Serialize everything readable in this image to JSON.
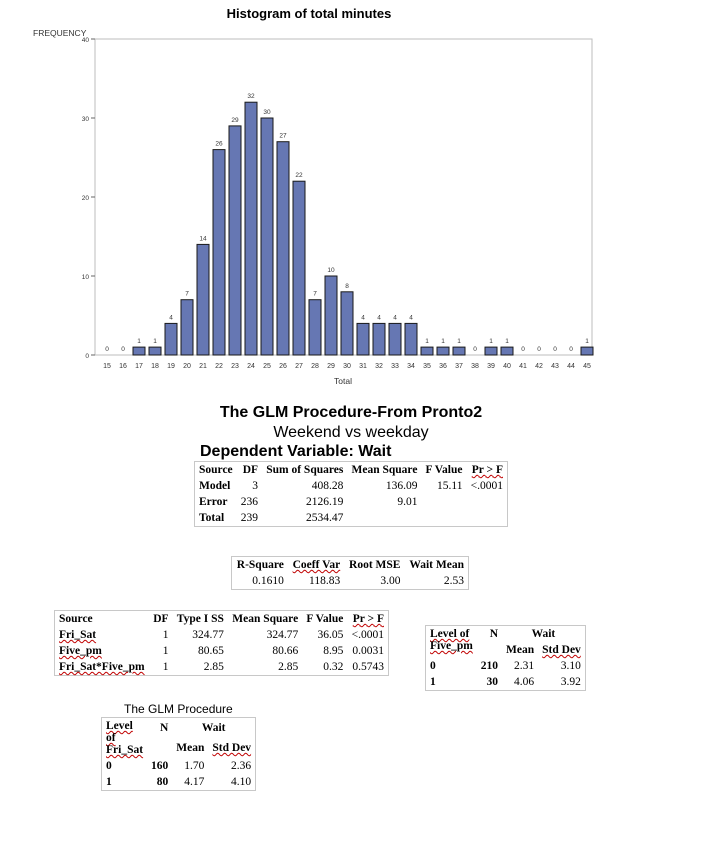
{
  "chart_data": {
    "type": "bar",
    "title": "Histogram of total minutes",
    "ylabel": "FREQUENCY",
    "xlabel": "Total",
    "ylim": [
      0,
      40
    ],
    "yticks": [
      0,
      10,
      20,
      30,
      40
    ],
    "categories": [
      "15",
      "16",
      "17",
      "18",
      "19",
      "20",
      "21",
      "22",
      "23",
      "24",
      "25",
      "26",
      "27",
      "28",
      "29",
      "30",
      "31",
      "32",
      "33",
      "34",
      "35",
      "36",
      "37",
      "38",
      "39",
      "40",
      "41",
      "42",
      "43",
      "44",
      "45"
    ],
    "values": [
      0,
      0,
      1,
      1,
      4,
      7,
      14,
      26,
      29,
      32,
      30,
      27,
      22,
      7,
      10,
      8,
      4,
      4,
      4,
      4,
      1,
      1,
      1,
      0,
      1,
      1,
      0,
      0,
      0,
      0,
      1
    ],
    "bar_color": "#6677b3",
    "bar_edge": "#1a1a1a"
  },
  "glm1": {
    "title": "The GLM Procedure-From Pronto2",
    "subtitle": "Weekend vs weekday",
    "dependent": "Dependent Variable: Wait",
    "anova": {
      "headers": [
        "Source",
        "DF",
        "Sum of Squares",
        "Mean Square",
        "F Value",
        "Pr > F"
      ],
      "rows": [
        [
          "Model",
          "3",
          "408.28",
          "136.09",
          "15.11",
          "<.0001"
        ],
        [
          "Error",
          "236",
          "2126.19",
          "9.01",
          "",
          ""
        ],
        [
          "Total",
          "239",
          "2534.47",
          "",
          "",
          ""
        ]
      ]
    },
    "fit": {
      "headers": [
        "R-Square",
        "Coeff Var",
        "Root MSE",
        "Wait Mean"
      ],
      "values": [
        "0.1610",
        "118.83",
        "3.00",
        "2.53"
      ]
    },
    "type1": {
      "headers": [
        "Source",
        "DF",
        "Type I SS",
        "Mean Square",
        "F Value",
        "Pr > F"
      ],
      "rows": [
        [
          "Fri_Sat",
          "1",
          "324.77",
          "324.77",
          "36.05",
          "<.0001"
        ],
        [
          "Five_pm",
          "1",
          "80.65",
          "80.66",
          "8.95",
          "0.0031"
        ],
        [
          "Fri_Sat*Five_pm",
          "1",
          "2.85",
          "2.85",
          "0.32",
          "0.5743"
        ]
      ]
    }
  },
  "five_pm_means": {
    "level_header": "Level of Five_pm",
    "n_header": "N",
    "var_header": "Wait",
    "mean_header": "Mean",
    "std_header": "Std Dev",
    "rows": [
      {
        "level": "0",
        "n": "210",
        "mean": "2.31",
        "std": "3.10"
      },
      {
        "level": "1",
        "n": "30",
        "mean": "4.06",
        "std": "3.92"
      }
    ]
  },
  "glm2": {
    "title": "The GLM Procedure",
    "level_header": "Level of Fri_Sat",
    "n_header": "N",
    "var_header": "Wait",
    "mean_header": "Mean",
    "std_header": "Std Dev",
    "rows": [
      {
        "level": "0",
        "n": "160",
        "mean": "1.70",
        "std": "2.36"
      },
      {
        "level": "1",
        "n": "80",
        "mean": "4.17",
        "std": "4.10"
      }
    ]
  }
}
